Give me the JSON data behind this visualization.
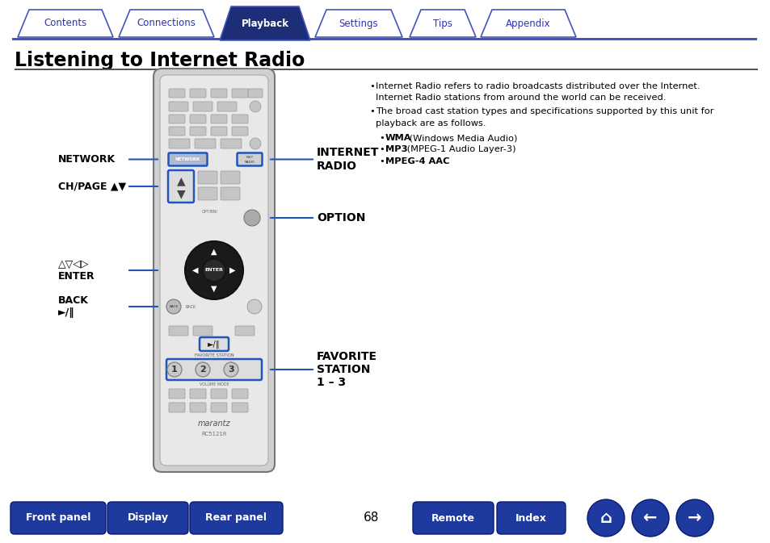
{
  "title": "Listening to Internet Radio",
  "page_num": "68",
  "tab_labels": [
    "Contents",
    "Connections",
    "Playback",
    "Settings",
    "Tips",
    "Appendix"
  ],
  "active_tab": 2,
  "tab_color_active": "#1e2d78",
  "tab_color_inactive": "#ffffff",
  "tab_text_active": "#ffffff",
  "tab_text_inactive": "#3333aa",
  "tab_border_color": "#4455bb",
  "body_bg": "#ffffff",
  "title_color": "#000000",
  "highlight_color": "#2255bb",
  "arrow_color": "#2255bb",
  "remote_outer": "#d0d0d0",
  "remote_inner": "#e8e8e8",
  "remote_border": "#888888",
  "btn_gray": "#c8c8c8",
  "btn_dark": "#333333",
  "bottom_btn_color": "#1e3a9f",
  "bottom_btn_text": "#ffffff",
  "fig_w": 9.54,
  "fig_h": 6.73,
  "dpi": 100
}
